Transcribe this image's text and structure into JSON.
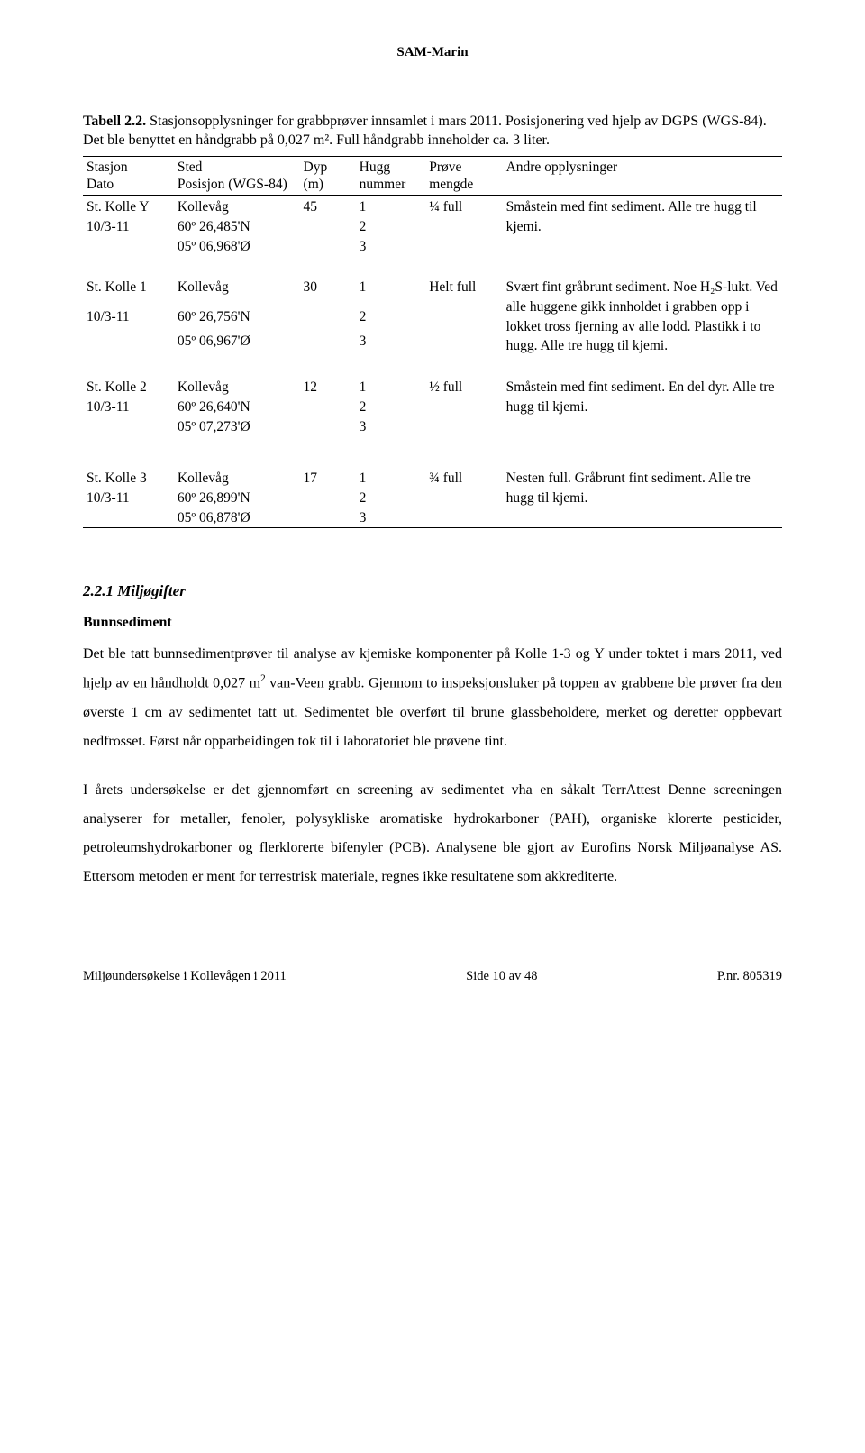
{
  "header": "SAM-Marin",
  "caption": {
    "label": "Tabell 2.2.",
    "text": " Stasjonsopplysninger for grabbprøver innsamlet i mars 2011. Posisjonering ved hjelp av DGPS (WGS-84). Det ble benyttet en håndgrabb på 0,027 m². Full håndgrabb inneholder ca. 3 liter."
  },
  "table": {
    "head": {
      "c1a": "Stasjon",
      "c1b": "Dato",
      "c2a": "Sted",
      "c2b": "Posisjon (WGS-84)",
      "c3a": "Dyp",
      "c3b": "(m)",
      "c4a": "Hugg",
      "c4b": "nummer",
      "c5a": "Prøve",
      "c5b": "mengde",
      "c6a": "Andre opplysninger"
    },
    "r1": {
      "station1": "St. Kolle Y",
      "station2": "10/3-11",
      "sted1": "Kollevåg",
      "sted2": "60º 26,485'N",
      "sted3": "05º 06,968'Ø",
      "dyp": "45",
      "h1": "1",
      "h2": "2",
      "h3": "3",
      "prove": "¼ full",
      "other": "Småstein med fint sediment. Alle tre hugg til kjemi."
    },
    "r2": {
      "station1": "St. Kolle 1",
      "station2": "10/3-11",
      "sted1": "Kollevåg",
      "sted2": "60º 26,756'N",
      "sted3": "05º 06,967'Ø",
      "dyp": "30",
      "h1": "1",
      "h2": "2",
      "h3": "3",
      "prove": "Helt full",
      "other": "Svært fint gråbrunt sediment. Noe H₂S-lukt. Ved alle huggene gikk innholdet i grabben opp i lokket tross fjerning av alle lodd. Plastikk i to hugg. Alle tre hugg til kjemi."
    },
    "r3": {
      "station1": "St. Kolle 2",
      "station2": "10/3-11",
      "sted1": "Kollevåg",
      "sted2": "60º 26,640'N",
      "sted3": "05º 07,273'Ø",
      "dyp": "12",
      "h1": "1",
      "h2": "2",
      "h3": "3",
      "prove": "½ full",
      "other": "Småstein med fint sediment. En del dyr. Alle tre hugg til kjemi."
    },
    "r4": {
      "station1": "St. Kolle 3",
      "station2": "10/3-11",
      "sted1": "Kollevåg",
      "sted2": "60º 26,899'N",
      "sted3": "05º 06,878'Ø",
      "dyp": "17",
      "h1": "1",
      "h2": "2",
      "h3": "3",
      "prove": "¾ full",
      "other": "Nesten full. Gråbrunt fint sediment. Alle tre hugg til kjemi."
    }
  },
  "section": {
    "title": "2.2.1 Miljøgifter",
    "subhead": "Bunnsediment",
    "para1a": "Det ble tatt bunnsedimentprøver til analyse av kjemiske komponenter på Kolle 1-3 og Y under toktet i mars 2011, ved hjelp av en håndholdt 0,027 m",
    "para1b": " van-Veen grabb. Gjennom to inspeksjonsluker på toppen av grabbene ble prøver fra den øverste 1 cm av sedimentet tatt ut. Sedimentet ble overført til brune glassbeholdere,  merket og deretter oppbevart nedfrosset. Først når opparbeidingen tok til i laboratoriet ble prøvene tint.",
    "para2": "I årets undersøkelse er det gjennomført en screening av sedimentet vha en såkalt TerrAttest Denne screeningen analyserer for metaller, fenoler, polysykliske aromatiske hydrokarboner (PAH), organiske klorerte pesticider, petroleumshydrokarboner og flerklorerte bifenyler (PCB). Analysene ble gjort av Eurofins Norsk Miljøanalyse AS. Ettersom metoden er ment for terrestrisk materiale, regnes ikke resultatene som akkrediterte."
  },
  "footer": {
    "left": "Miljøundersøkelse i Kollevågen i 2011",
    "center": "Side 10 av 48",
    "right": "P.nr. 805319"
  }
}
